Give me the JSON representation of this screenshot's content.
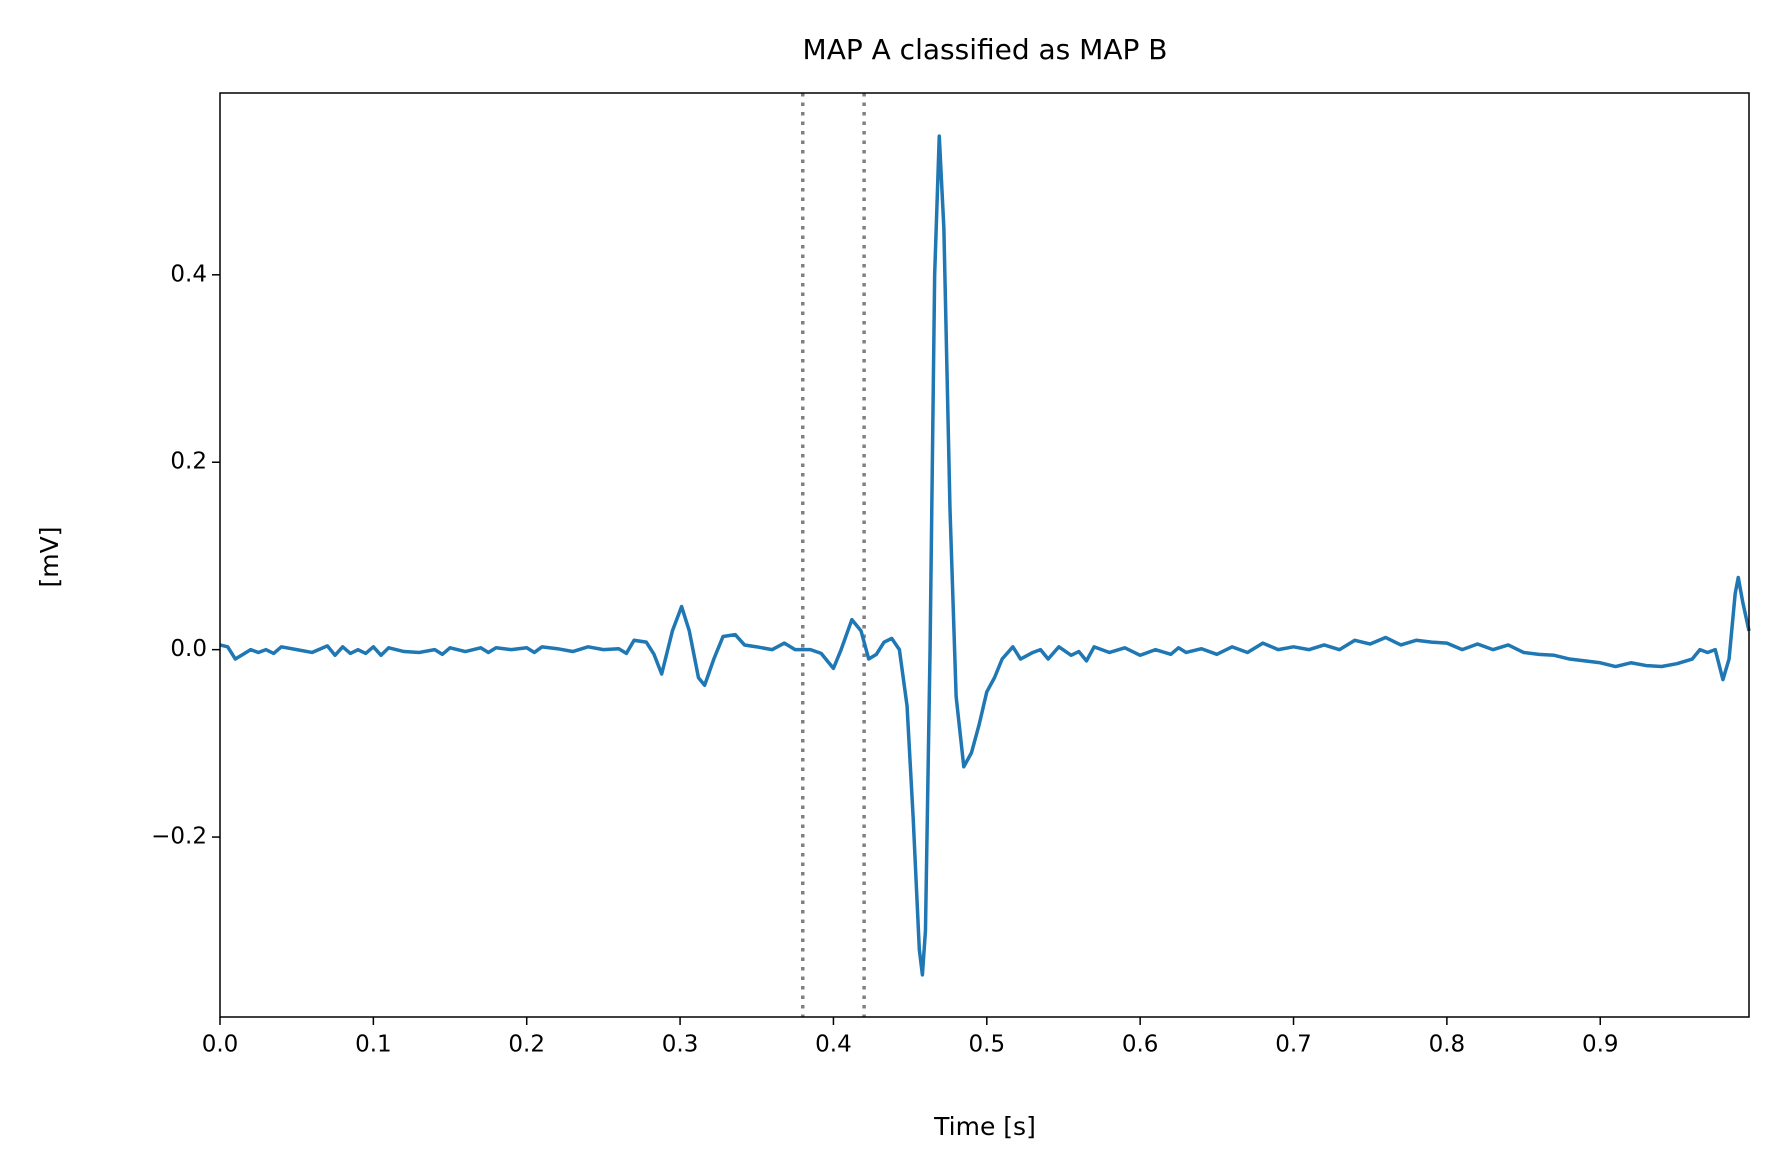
{
  "chart_data": {
    "type": "line",
    "title": "MAP A classified as MAP B",
    "x_label": "Time [s]",
    "y_label": "[mV]",
    "x": [
      0,
      0.005,
      0.01,
      0.015,
      0.02,
      0.025,
      0.03,
      0.035,
      0.04,
      0.05,
      0.06,
      0.07,
      0.075,
      0.08,
      0.085,
      0.09,
      0.095,
      0.1,
      0.105,
      0.11,
      0.12,
      0.13,
      0.14,
      0.145,
      0.15,
      0.16,
      0.17,
      0.175,
      0.18,
      0.19,
      0.2,
      0.205,
      0.21,
      0.22,
      0.23,
      0.24,
      0.25,
      0.26,
      0.265,
      0.27,
      0.278,
      0.283,
      0.288,
      0.295,
      0.301,
      0.306,
      0.312,
      0.316,
      0.322,
      0.328,
      0.336,
      0.342,
      0.35,
      0.36,
      0.368,
      0.375,
      0.385,
      0.392,
      0.4,
      0.405,
      0.412,
      0.418,
      0.423,
      0.428,
      0.433,
      0.438,
      0.443,
      0.448,
      0.452,
      0.456,
      0.458,
      0.46,
      0.463,
      0.466,
      0.469,
      0.472,
      0.476,
      0.48,
      0.485,
      0.49,
      0.495,
      0.5,
      0.505,
      0.51,
      0.517,
      0.522,
      0.53,
      0.535,
      0.54,
      0.547,
      0.555,
      0.56,
      0.565,
      0.57,
      0.58,
      0.59,
      0.6,
      0.61,
      0.62,
      0.625,
      0.63,
      0.64,
      0.65,
      0.66,
      0.67,
      0.68,
      0.69,
      0.7,
      0.71,
      0.72,
      0.73,
      0.74,
      0.75,
      0.76,
      0.77,
      0.78,
      0.79,
      0.8,
      0.81,
      0.82,
      0.83,
      0.84,
      0.85,
      0.86,
      0.87,
      0.88,
      0.89,
      0.9,
      0.91,
      0.92,
      0.93,
      0.94,
      0.95,
      0.96,
      0.965,
      0.97,
      0.975,
      0.98,
      0.984,
      0.988,
      0.99,
      0.993,
      0.997
    ],
    "series": [
      {
        "color": "#1f77b4",
        "values": [
          0.005,
          0.003,
          -0.01,
          -0.005,
          0.0,
          -0.003,
          0.0,
          -0.004,
          0.003,
          0.0,
          -0.003,
          0.004,
          -0.006,
          0.003,
          -0.004,
          0.0,
          -0.004,
          0.003,
          -0.006,
          0.002,
          -0.002,
          -0.003,
          0.0,
          -0.005,
          0.002,
          -0.002,
          0.002,
          -0.003,
          0.002,
          0.0,
          0.002,
          -0.003,
          0.003,
          0.001,
          -0.002,
          0.003,
          0.0,
          0.001,
          -0.004,
          0.01,
          0.008,
          -0.005,
          -0.026,
          0.02,
          0.046,
          0.02,
          -0.03,
          -0.038,
          -0.01,
          0.014,
          0.016,
          0.005,
          0.003,
          0.0,
          0.007,
          0.0,
          0.0,
          -0.004,
          -0.02,
          0.0,
          0.032,
          0.02,
          -0.01,
          -0.005,
          0.008,
          0.012,
          0.0,
          -0.06,
          -0.18,
          -0.32,
          -0.347,
          -0.3,
          0.0,
          0.4,
          0.548,
          0.45,
          0.15,
          -0.05,
          -0.125,
          -0.11,
          -0.08,
          -0.045,
          -0.03,
          -0.01,
          0.003,
          -0.01,
          -0.003,
          0.0,
          -0.01,
          0.003,
          -0.006,
          -0.002,
          -0.012,
          0.003,
          -0.003,
          0.002,
          -0.006,
          0.0,
          -0.005,
          0.002,
          -0.003,
          0.001,
          -0.005,
          0.003,
          -0.003,
          0.007,
          0.0,
          0.003,
          0.0,
          0.005,
          0.0,
          0.01,
          0.006,
          0.013,
          0.005,
          0.01,
          0.008,
          0.007,
          0.0,
          0.006,
          0.0,
          0.005,
          -0.003,
          -0.005,
          -0.006,
          -0.01,
          -0.012,
          -0.014,
          -0.018,
          -0.014,
          -0.017,
          -0.018,
          -0.015,
          -0.01,
          0.0,
          -0.003,
          0.0,
          -0.032,
          -0.01,
          0.06,
          0.077,
          0.05,
          0.02
        ]
      }
    ],
    "vlines": [
      0.38,
      0.42
    ],
    "vline_color": "#808080",
    "xlim": [
      0,
      0.997
    ],
    "ylim": [
      -0.392,
      0.594
    ],
    "xticks": [
      {
        "value": 0,
        "label": "0.0"
      },
      0.1,
      0.2,
      0.3,
      0.4,
      0.5,
      0.6,
      0.7,
      0.8,
      0.9
    ],
    "yticks": [
      {
        "value": -0.2,
        "label": "−0.2"
      },
      {
        "value": 0,
        "label": "0.0"
      },
      0.2,
      0.4
    ]
  }
}
